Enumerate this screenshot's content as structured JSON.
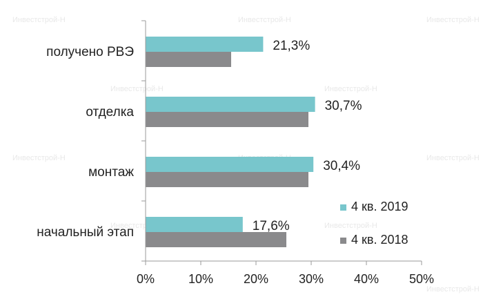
{
  "chart_data": {
    "type": "bar",
    "orientation": "horizontal",
    "categories": [
      "получено РВЭ",
      "отделка",
      "монтаж",
      "начальный этап"
    ],
    "series": [
      {
        "name": "4 кв. 2019",
        "values": [
          21.3,
          30.7,
          30.4,
          17.6
        ],
        "color": "#78c6cc",
        "data_labels": [
          "21,3%",
          "30,7%",
          "30,4%",
          "17,6%"
        ]
      },
      {
        "name": "4 кв. 2018",
        "values": [
          15.5,
          29.5,
          29.5,
          25.5
        ],
        "color": "#8a8a8c"
      }
    ],
    "x_ticks": [
      "0%",
      "10%",
      "20%",
      "30%",
      "40%",
      "50%"
    ],
    "xlim": [
      0,
      50
    ],
    "legend": "bottom-right",
    "grid": false,
    "watermark": "Инвестстрой-Н"
  }
}
